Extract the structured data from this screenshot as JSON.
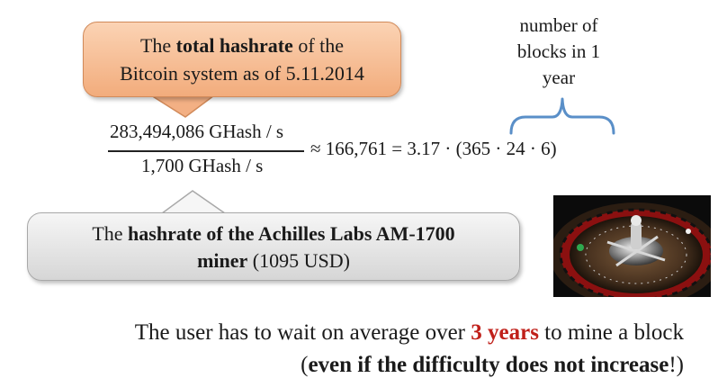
{
  "top_callout": {
    "line1_a": "The ",
    "line1_bold": "total hashrate",
    "line1_b": " of the",
    "line2": "Bitcoin system as of 5.11.2014"
  },
  "formula": {
    "numerator": "283,494,086 GHash / s",
    "denominator": "1,700 GHash / s",
    "rhs": "≈ 166,761 = 3.17 · (365 · 24 · 6)"
  },
  "brace_note": {
    "line1": "number of",
    "line2": "blocks in 1",
    "line3": "year"
  },
  "bottom_callout": {
    "line1_a": "The ",
    "line1_bold": "hashrate of the Achilles Labs AM-1700",
    "line2_bold": "miner",
    "line2_rest": "  (1095 USD)"
  },
  "statement": {
    "line1_a": "The user has to wait on average over ",
    "line1_highlight": "3 years",
    "line1_b": " to mine a block",
    "line2_open": "(",
    "line2_bold": "even if the difficulty does not increase",
    "line2_close": "!)"
  },
  "colors": {
    "highlight": "#c0201a",
    "brace": "#5a8fc8",
    "callout_orange": "#f2ac7c",
    "callout_gray": "#d6d6d6"
  }
}
